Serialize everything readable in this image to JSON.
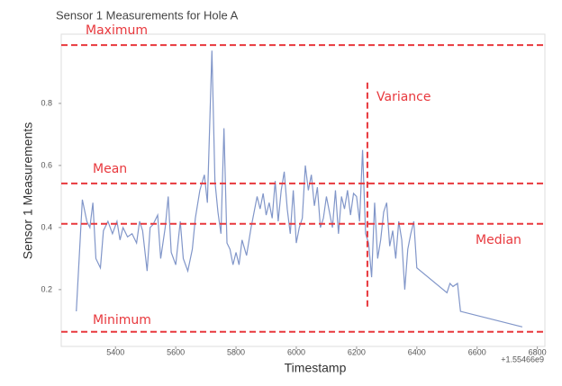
{
  "chart_data": {
    "type": "line",
    "title": "Sensor 1 Measurements for Hole A",
    "x_label": "Timestamp",
    "y_label": "Sensor 1 Measurements",
    "x_offset_label": "+1.55466e9",
    "color": "#8196c9",
    "x": [
      5270,
      5290,
      5305,
      5315,
      5325,
      5335,
      5350,
      5360,
      5375,
      5390,
      5405,
      5415,
      5425,
      5440,
      5455,
      5470,
      5480,
      5490,
      5505,
      5515,
      5525,
      5540,
      5550,
      5565,
      5575,
      5585,
      5600,
      5615,
      5625,
      5640,
      5655,
      5665,
      5680,
      5695,
      5705,
      5720,
      5730,
      5740,
      5750,
      5760,
      5770,
      5780,
      5790,
      5800,
      5810,
      5820,
      5835,
      5850,
      5860,
      5870,
      5880,
      5890,
      5900,
      5910,
      5920,
      5930,
      5940,
      5950,
      5960,
      5970,
      5980,
      5990,
      6000,
      6010,
      6020,
      6030,
      6040,
      6050,
      6060,
      6070,
      6080,
      6090,
      6100,
      6110,
      6120,
      6130,
      6140,
      6150,
      6160,
      6170,
      6180,
      6190,
      6200,
      6210,
      6220,
      6230,
      6240,
      6250,
      6260,
      6270,
      6280,
      6290,
      6300,
      6310,
      6320,
      6330,
      6340,
      6350,
      6360,
      6370,
      6380,
      6390,
      6400,
      6500,
      6510,
      6520,
      6535,
      6545,
      6750
    ],
    "values": [
      0.13,
      0.49,
      0.42,
      0.4,
      0.48,
      0.3,
      0.27,
      0.39,
      0.42,
      0.38,
      0.42,
      0.36,
      0.4,
      0.37,
      0.38,
      0.35,
      0.42,
      0.39,
      0.26,
      0.4,
      0.41,
      0.44,
      0.3,
      0.4,
      0.5,
      0.32,
      0.28,
      0.42,
      0.3,
      0.26,
      0.33,
      0.43,
      0.52,
      0.57,
      0.48,
      0.97,
      0.55,
      0.45,
      0.38,
      0.72,
      0.35,
      0.33,
      0.28,
      0.32,
      0.28,
      0.36,
      0.31,
      0.4,
      0.45,
      0.5,
      0.46,
      0.51,
      0.44,
      0.48,
      0.43,
      0.55,
      0.42,
      0.52,
      0.58,
      0.46,
      0.38,
      0.52,
      0.35,
      0.4,
      0.43,
      0.6,
      0.52,
      0.57,
      0.47,
      0.53,
      0.4,
      0.43,
      0.5,
      0.45,
      0.4,
      0.52,
      0.38,
      0.5,
      0.46,
      0.52,
      0.44,
      0.51,
      0.5,
      0.42,
      0.65,
      0.38,
      0.35,
      0.24,
      0.48,
      0.3,
      0.36,
      0.45,
      0.48,
      0.34,
      0.39,
      0.3,
      0.42,
      0.36,
      0.2,
      0.33,
      0.38,
      0.42,
      0.27,
      0.19,
      0.22,
      0.21,
      0.22,
      0.13,
      0.08
    ],
    "xlim": [
      5220,
      6825
    ],
    "xticks": [
      5400,
      5600,
      5800,
      6000,
      6200,
      6400,
      6600,
      6800
    ],
    "ylim": [
      0.017,
      1.023
    ],
    "yticks": [
      0.2,
      0.4,
      0.6,
      0.8
    ],
    "annotations": [
      {
        "label": "Maximum",
        "y": 0.988,
        "color": "#e8383d"
      },
      {
        "label": "Mean",
        "y": 0.542,
        "color": "#e8383d"
      },
      {
        "label": "Median",
        "y": 0.412,
        "color": "#e8383d"
      },
      {
        "label": "Minimum",
        "y": 0.064,
        "color": "#e8383d"
      },
      {
        "label": "Variance",
        "x": 6236,
        "y_range": [
          0.139,
          0.867
        ],
        "color": "#e8383d"
      }
    ]
  }
}
